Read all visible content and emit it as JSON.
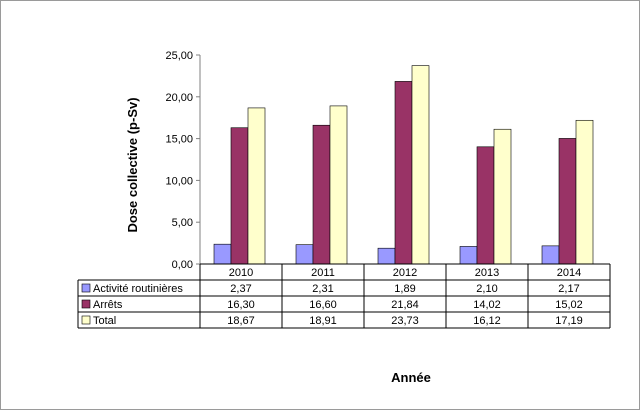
{
  "chart_data": {
    "type": "bar",
    "categories": [
      "2010",
      "2011",
      "2012",
      "2013",
      "2014"
    ],
    "series": [
      {
        "name": "Activité routinières",
        "values": [
          2.37,
          2.31,
          1.89,
          2.1,
          2.17
        ],
        "labels": [
          "2,37",
          "2,31",
          "1,89",
          "2,10",
          "2,17"
        ],
        "color": "#9999ff"
      },
      {
        "name": "Arrêts",
        "values": [
          16.3,
          16.6,
          21.84,
          14.02,
          15.02
        ],
        "labels": [
          "16,30",
          "16,60",
          "21,84",
          "14,02",
          "15,02"
        ],
        "color": "#993366"
      },
      {
        "name": "Total",
        "values": [
          18.67,
          18.91,
          23.73,
          16.12,
          17.19
        ],
        "labels": [
          "18,67",
          "18,91",
          "23,73",
          "16,12",
          "17,19"
        ],
        "color": "#ffffcc"
      }
    ],
    "title": "",
    "xlabel": "Année",
    "ylabel": "Dose collective (p-Sv)",
    "ylim": [
      0,
      25
    ],
    "yticks": [
      0,
      5,
      10,
      15,
      20,
      25
    ],
    "ytick_labels": [
      "0,00",
      "5,00",
      "10,00",
      "15,00",
      "20,00",
      "25,00"
    ],
    "grid": false,
    "legend": "data-table"
  },
  "colors": {
    "bar_outline": "#000000",
    "axis": "#808080",
    "background": "#ffffff"
  }
}
